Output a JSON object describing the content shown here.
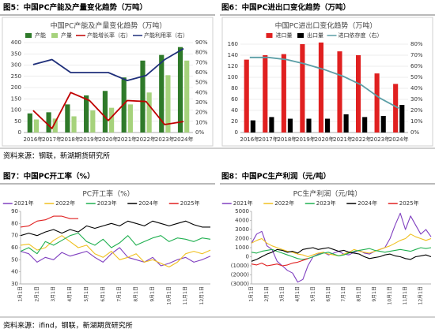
{
  "chart_data": [
    {
      "type": "combo",
      "caption": "图5：中国PC产能及产量变化趋势（万吨）",
      "title": "中国PC产能及产量变化趋势（万吨）",
      "categories": [
        "2016年",
        "2017年",
        "2018年",
        "2019年",
        "2020年",
        "2021年",
        "2022年",
        "2023年",
        "2024年"
      ],
      "series": [
        {
          "name": "产能",
          "kind": "bar",
          "color": "#2f7a2a",
          "values": [
            85,
            90,
            125,
            165,
            185,
            245,
            320,
            345,
            380
          ]
        },
        {
          "name": "产量",
          "kind": "bar",
          "color": "#a6d27c",
          "values": [
            58,
            62,
            72,
            98,
            110,
            125,
            178,
            255,
            320
          ]
        },
        {
          "name": "产能增长率（右）",
          "kind": "line",
          "axis": "y2",
          "color": "#c00000",
          "values": [
            22,
            4,
            40,
            32,
            12,
            32,
            31,
            8,
            11
          ]
        },
        {
          "name": "产能利用率（右）",
          "kind": "line",
          "axis": "y2",
          "color": "#1f2f7a",
          "values": [
            68,
            73,
            60,
            60,
            60,
            52,
            57,
            73,
            84
          ]
        }
      ],
      "ylim": [
        0,
        400
      ],
      "yticks": [
        0,
        50,
        100,
        150,
        200,
        250,
        300,
        350,
        400
      ],
      "y2lim": [
        0,
        90
      ],
      "y2ticks": [
        {
          "value": 0,
          "label": "0%"
        },
        {
          "value": 10,
          "label": "10%"
        },
        {
          "value": 20,
          "label": "20%"
        },
        {
          "value": 30,
          "label": "30%"
        },
        {
          "value": 40,
          "label": "40%"
        },
        {
          "value": 50,
          "label": "50%"
        },
        {
          "value": 60,
          "label": "60%"
        },
        {
          "value": 70,
          "label": "70%"
        },
        {
          "value": 80,
          "label": "80%"
        },
        {
          "value": 90,
          "label": "90%"
        }
      ],
      "grid": true
    },
    {
      "type": "combo",
      "caption": "图6：中国PC进出口变化趋势（万吨）",
      "title": "中国PC进出口变化趋势（万吨）",
      "categories": [
        "2016年",
        "2017年",
        "2018年",
        "2019年",
        "2020年",
        "2021年",
        "2022年",
        "2023年",
        "2024年"
      ],
      "series": [
        {
          "name": "进口量",
          "kind": "bar",
          "color": "#e02020",
          "values": [
            132,
            140,
            142,
            160,
            163,
            147,
            140,
            107,
            88
          ]
        },
        {
          "name": "出口量",
          "kind": "bar",
          "color": "#000000",
          "values": [
            22,
            28,
            25,
            25,
            25,
            33,
            28,
            30,
            50
          ]
        },
        {
          "name": "进口依存度（右）",
          "kind": "line",
          "axis": "y2",
          "color": "#5b9ea6",
          "values": [
            68,
            68,
            66,
            62,
            57,
            51,
            43,
            31,
            22
          ]
        }
      ],
      "ylim": [
        0,
        160
      ],
      "yticks": [
        0,
        20,
        40,
        60,
        80,
        100,
        120,
        140,
        160
      ],
      "y2lim": [
        0,
        80
      ],
      "y2ticks": [
        {
          "value": 0,
          "label": "0%"
        },
        {
          "value": 10,
          "label": "10%"
        },
        {
          "value": 20,
          "label": "20%"
        },
        {
          "value": 30,
          "label": "30%"
        },
        {
          "value": 40,
          "label": "40%"
        },
        {
          "value": 50,
          "label": "50%"
        },
        {
          "value": 60,
          "label": "60%"
        },
        {
          "value": 70,
          "label": "70%"
        },
        {
          "value": 80,
          "label": "80%"
        }
      ],
      "grid": true
    },
    {
      "type": "line",
      "caption": "图7：中国PC开工率（%）",
      "title": "PC开工率（%）",
      "categories": [
        "1月1日",
        null,
        "2月1日",
        null,
        "3月1日",
        null,
        "4月1日",
        null,
        "5月1日",
        null,
        "6月1日",
        null,
        "7月1日",
        null,
        "8月1日",
        null,
        "9月1日",
        null,
        "10月1日",
        null,
        "11月1日",
        null,
        "12月1日",
        null
      ],
      "series": [
        {
          "name": "2021年",
          "color": "#8040c0",
          "values": [
            57,
            55,
            48,
            52,
            50,
            56,
            53,
            55,
            57,
            52,
            48,
            55,
            60,
            52,
            50,
            48,
            52,
            45,
            47,
            50,
            52,
            48,
            50,
            53
          ]
        },
        {
          "name": "2022年",
          "color": "#f0c020",
          "values": [
            62,
            63,
            58,
            60,
            66,
            70,
            65,
            60,
            62,
            55,
            52,
            57,
            50,
            52,
            55,
            48,
            50,
            47,
            44,
            48,
            55,
            57,
            55,
            58
          ]
        },
        {
          "name": "2023年",
          "color": "#20b050",
          "values": [
            57,
            60,
            55,
            65,
            62,
            66,
            70,
            72,
            65,
            62,
            67,
            60,
            64,
            70,
            62,
            65,
            68,
            70,
            65,
            68,
            67,
            65,
            68,
            67
          ]
        },
        {
          "name": "2024年",
          "color": "#000000",
          "values": [
            70,
            72,
            70,
            73,
            75,
            72,
            75,
            73,
            78,
            76,
            78,
            80,
            78,
            82,
            80,
            78,
            82,
            80,
            78,
            80,
            82,
            79,
            77,
            77
          ]
        },
        {
          "name": "2025年",
          "color": "#e02020",
          "values": [
            77,
            78,
            82,
            83,
            86,
            86,
            84,
            84,
            null,
            null,
            null,
            null,
            null,
            null,
            null,
            null,
            null,
            null,
            null,
            null,
            null,
            null,
            null,
            null
          ]
        }
      ],
      "ylim": [
        30,
        90
      ],
      "yticks": [
        30,
        40,
        50,
        60,
        70,
        80,
        90
      ],
      "grid": false
    },
    {
      "type": "line",
      "caption": "图8：中国PC生产利润（元/吨）",
      "title": "PC生产利润（元/吨）",
      "categories": [
        "1月1日",
        null,
        null,
        "2月1日",
        null,
        null,
        "3月1日",
        null,
        null,
        "4月1日",
        null,
        null,
        "5月1日",
        null,
        null,
        "6月1日",
        null,
        null,
        "7月1日",
        null,
        null,
        "8月1日",
        null,
        null,
        "9月1日",
        null,
        null,
        "10月1日",
        null,
        null,
        "11月1日",
        null,
        null,
        "12月1日",
        null,
        null
      ],
      "series": [
        {
          "name": "2021年",
          "color": "#8040c0",
          "values": [
            1500,
            2500,
            2800,
            1200,
            800,
            -500,
            -1000,
            -1500,
            -1800,
            -2800,
            -2500,
            -1000,
            0,
            300,
            500,
            200,
            400,
            600,
            300,
            200,
            500,
            700,
            400,
            300,
            600,
            800,
            1000,
            2000,
            3500,
            4800,
            3000,
            4500,
            3500,
            2500,
            3000,
            2200
          ]
        },
        {
          "name": "2022年",
          "color": "#f0c020",
          "values": [
            1500,
            1800,
            2000,
            1500,
            1200,
            1000,
            800,
            600,
            500,
            300,
            200,
            0,
            200,
            400,
            500,
            300,
            200,
            100,
            300,
            500,
            800,
            600,
            500,
            400,
            600,
            800,
            1000,
            1200,
            1500,
            1800,
            2000,
            2500,
            2200,
            2000,
            1800,
            2000
          ]
        },
        {
          "name": "2023年",
          "color": "#20b050",
          "values": [
            500,
            400,
            600,
            700,
            800,
            600,
            400,
            200,
            0,
            -200,
            -300,
            -200,
            0,
            200,
            400,
            500,
            300,
            100,
            200,
            400,
            600,
            700,
            800,
            900,
            700,
            600,
            500,
            600,
            700,
            800,
            700,
            600,
            800,
            1000,
            900,
            1000
          ]
        },
        {
          "name": "2024年",
          "color": "#000000",
          "values": [
            -500,
            -300,
            0,
            300,
            500,
            800,
            700,
            500,
            600,
            400,
            800,
            900,
            1000,
            800,
            900,
            1000,
            800,
            600,
            700,
            500,
            400,
            300,
            0,
            -200,
            -100,
            0,
            200,
            300,
            100,
            0,
            -200,
            -300,
            0,
            100,
            200,
            0
          ]
        },
        {
          "name": "2025年",
          "color": "#e02020",
          "values": [
            -800,
            -900,
            -700,
            -1000,
            -900,
            -800,
            -1000,
            -900,
            -700,
            -600,
            -400,
            -200,
            null,
            null,
            null,
            null,
            null,
            null,
            null,
            null,
            null,
            null,
            null,
            null,
            null,
            null,
            null,
            null,
            null,
            null,
            null,
            null,
            null,
            null,
            null,
            null
          ]
        }
      ],
      "ylim": [
        -3000,
        5000
      ],
      "yticks": [
        {
          "value": -3000,
          "label": "(3000)"
        },
        {
          "value": -2000,
          "label": "(2000)"
        },
        {
          "value": -1000,
          "label": "(1000)"
        },
        0,
        1000,
        2000,
        3000,
        4000,
        5000
      ],
      "grid": false
    }
  ],
  "sources": [
    "资料来源：钢联，新湖期货研究所",
    "资料来源：ifind，钢联，新湖期货研究所"
  ]
}
